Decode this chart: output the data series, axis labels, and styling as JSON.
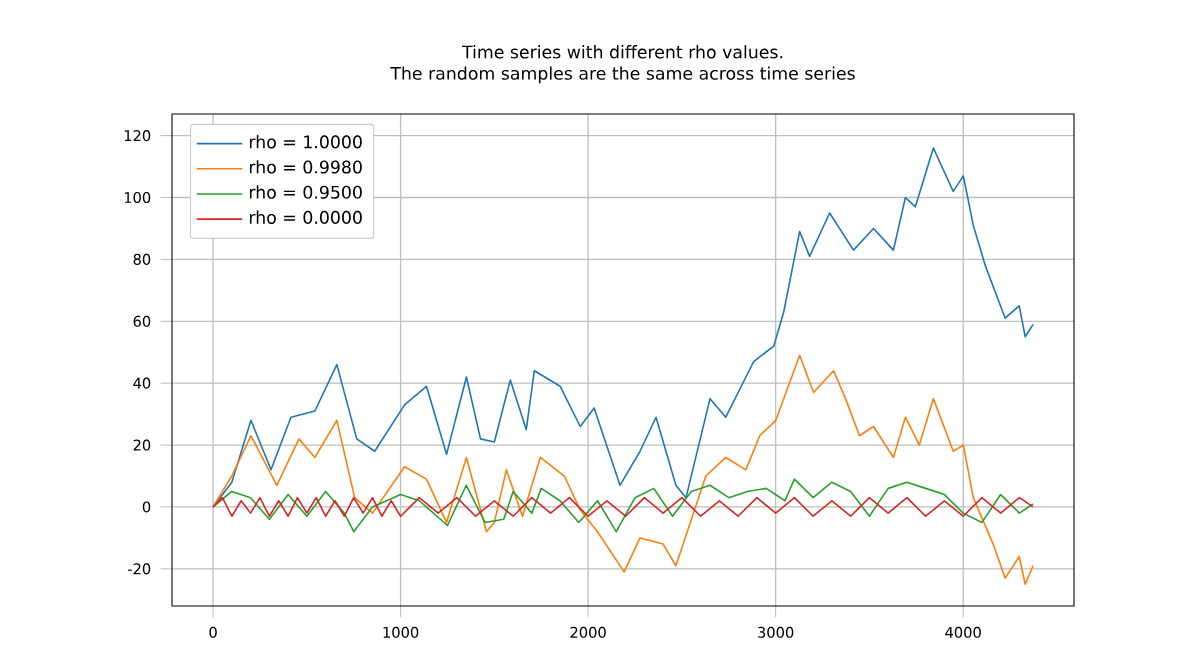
{
  "chart_data": {
    "type": "line",
    "title": "Time series with different rho values.",
    "subtitle": "The random samples are the same across time series",
    "xlim": [
      -219,
      4591
    ],
    "ylim": [
      -32,
      127
    ],
    "xticks": [
      0,
      1000,
      2000,
      3000,
      4000
    ],
    "yticks": [
      -20,
      0,
      20,
      40,
      60,
      80,
      100,
      120
    ],
    "grid": true,
    "legend": "top left",
    "marker": "none",
    "line_style": "solid",
    "series": [
      {
        "name": "rho = 1.0000",
        "color": "#1f77b4",
        "x": [
          0,
          100,
          202,
          309,
          415,
          543,
          660,
          766,
          862,
          1021,
          1138,
          1245,
          1351,
          1426,
          1500,
          1585,
          1670,
          1713,
          1851,
          1958,
          2032,
          2170,
          2277,
          2362,
          2468,
          2522,
          2650,
          2734,
          2883,
          2990,
          3043,
          3128,
          3181,
          3288,
          3415,
          3522,
          3628,
          3692,
          3745,
          3841,
          3947,
          4001,
          4054,
          4118,
          4224,
          4299,
          4331,
          4373
        ],
        "values": [
          0,
          8,
          28,
          12,
          29,
          31,
          46,
          22,
          18,
          33,
          39,
          17,
          42,
          22,
          21,
          41,
          25,
          44,
          39,
          26,
          32,
          7,
          18,
          29,
          7,
          3,
          35,
          29,
          47,
          52,
          63,
          89,
          81,
          95,
          83,
          90,
          83,
          100,
          97,
          116,
          102,
          107,
          91,
          78,
          61,
          65,
          55,
          59
        ]
      },
      {
        "name": "rho = 0.9980",
        "color": "#ff7f0e",
        "x": [
          0,
          100,
          202,
          340,
          458,
          543,
          660,
          755,
          850,
          1021,
          1138,
          1245,
          1351,
          1458,
          1500,
          1564,
          1650,
          1745,
          1873,
          1958,
          2050,
          2192,
          2277,
          2400,
          2468,
          2628,
          2734,
          2841,
          2915,
          3001,
          3128,
          3202,
          3309,
          3373,
          3447,
          3522,
          3628,
          3692,
          3766,
          3841,
          3947,
          4001,
          4054,
          4160,
          4224,
          4299,
          4331,
          4373
        ],
        "values": [
          0,
          10,
          23,
          7,
          22,
          16,
          28,
          3,
          -2,
          13,
          9,
          -5,
          16,
          -8,
          -5,
          12,
          -3,
          16,
          10,
          -1,
          -8,
          -21,
          -10,
          -12,
          -19,
          10,
          16,
          12,
          23,
          28,
          49,
          37,
          44,
          35,
          23,
          26,
          16,
          29,
          20,
          35,
          18,
          20,
          3,
          -12,
          -23,
          -16,
          -25,
          -19
        ]
      },
      {
        "name": "rho = 0.9500",
        "color": "#2ca02c",
        "x": [
          0,
          100,
          200,
          300,
          400,
          500,
          600,
          700,
          750,
          850,
          1000,
          1100,
          1250,
          1350,
          1450,
          1550,
          1600,
          1700,
          1750,
          1850,
          1950,
          2050,
          2150,
          2250,
          2350,
          2450,
          2550,
          2650,
          2750,
          2850,
          2950,
          3050,
          3100,
          3200,
          3300,
          3400,
          3500,
          3600,
          3700,
          3800,
          3900,
          4000,
          4100,
          4200,
          4300,
          4373
        ],
        "values": [
          0,
          5,
          3,
          -4,
          4,
          -3,
          5,
          -2,
          -8,
          0,
          4,
          2,
          -6,
          7,
          -5,
          -4,
          5,
          -2,
          6,
          2,
          -5,
          2,
          -8,
          3,
          6,
          -3,
          5,
          7,
          3,
          5,
          6,
          2,
          9,
          3,
          8,
          5,
          -3,
          6,
          8,
          6,
          4,
          -2,
          -5,
          4,
          -2,
          1
        ]
      },
      {
        "name": "rho = 0.0000",
        "color": "#d62728",
        "x": [
          0,
          50,
          100,
          150,
          200,
          250,
          300,
          350,
          400,
          450,
          500,
          550,
          600,
          650,
          700,
          750,
          800,
          850,
          900,
          950,
          1000,
          1100,
          1200,
          1300,
          1400,
          1500,
          1600,
          1700,
          1800,
          1900,
          2000,
          2100,
          2200,
          2300,
          2400,
          2500,
          2600,
          2700,
          2800,
          2900,
          3000,
          3100,
          3200,
          3300,
          3400,
          3500,
          3600,
          3700,
          3800,
          3900,
          4000,
          4100,
          4200,
          4300,
          4373
        ],
        "values": [
          0,
          3,
          -3,
          2,
          -2,
          3,
          -3,
          2,
          -3,
          3,
          -2,
          3,
          -3,
          2,
          -3,
          3,
          -2,
          3,
          -3,
          2,
          -3,
          3,
          -2,
          3,
          -3,
          2,
          -3,
          3,
          -2,
          3,
          -3,
          2,
          -3,
          3,
          -2,
          3,
          -3,
          2,
          -3,
          3,
          -2,
          3,
          -3,
          2,
          -3,
          3,
          -2,
          3,
          -3,
          2,
          -3,
          3,
          -2,
          3,
          0
        ]
      }
    ]
  }
}
